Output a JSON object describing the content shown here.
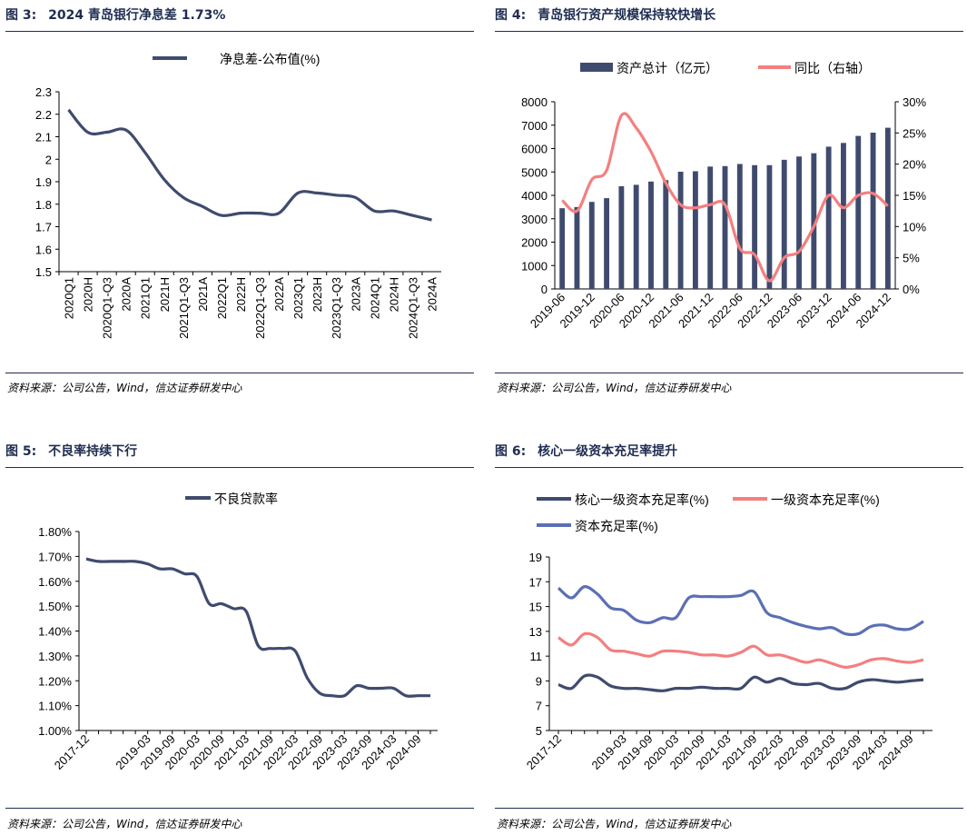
{
  "panels": [
    {
      "fig_label": "图 3:",
      "fig_title": "2024 青岛银行净息差 1.73%",
      "source": "资料来源：公司公告，Wind，信达证券研发中心"
    },
    {
      "fig_label": "图 4:",
      "fig_title": "青岛银行资产规模保持较快增长",
      "source": "资料来源：公司公告，Wind，信达证券研发中心"
    },
    {
      "fig_label": "图 5:",
      "fig_title": "不良率持续下行",
      "source": "资料来源：公司公告，Wind，信达证券研发中心"
    },
    {
      "fig_label": "图 6:",
      "fig_title": "核心一级资本充足率提升",
      "source": "资料来源：公司公告，Wind，信达证券研发中心"
    }
  ],
  "colors": {
    "navy": "#3f4b6e",
    "salmon": "#f47f7f",
    "blue": "#5b6fb4",
    "title": "#1f2d52"
  },
  "chart_data": [
    {
      "type": "line",
      "title": "2024 青岛银行净息差 1.73%",
      "categories": [
        "2020Q1",
        "2020H",
        "2020Q1-Q3",
        "2020A",
        "2021Q1",
        "2021H",
        "2021Q1-Q3",
        "2021A",
        "2022Q1",
        "2022H",
        "2022Q1-Q3",
        "2022A",
        "2023Q1",
        "2023H",
        "2023Q1-Q3",
        "2023A",
        "2024Q1",
        "2024H",
        "2024Q1-Q3",
        "2024A"
      ],
      "series": [
        {
          "name": "净息差-公布值(%)",
          "values": [
            2.22,
            2.12,
            2.12,
            2.13,
            2.03,
            1.91,
            1.83,
            1.79,
            1.75,
            1.76,
            1.76,
            1.76,
            1.85,
            1.85,
            1.84,
            1.83,
            1.77,
            1.77,
            1.75,
            1.73
          ]
        }
      ],
      "ylim": [
        1.5,
        2.3
      ],
      "yticks": [
        "2.3",
        "2.2",
        "2.1",
        "2",
        "1.9",
        "1.8",
        "1.7",
        "1.6",
        "1.5"
      ],
      "legend": "top-center"
    },
    {
      "type": "bar+line",
      "title": "青岛银行资产规模保持较快增长",
      "categories": [
        "2019-06",
        "2019-09",
        "2019-12",
        "2020-03",
        "2020-06",
        "2020-09",
        "2020-12",
        "2021-03",
        "2021-06",
        "2021-09",
        "2021-12",
        "2022-03",
        "2022-06",
        "2022-09",
        "2022-12",
        "2023-03",
        "2023-06",
        "2023-09",
        "2023-12",
        "2024-03",
        "2024-06",
        "2024-09",
        "2024-12"
      ],
      "xticks": [
        "2019-06",
        "2019-12",
        "2020-06",
        "2020-12",
        "2021-06",
        "2021-12",
        "2022-06",
        "2022-12",
        "2023-06",
        "2023-12",
        "2024-06",
        "2024-12"
      ],
      "series": [
        {
          "name": "资产总计（亿元）",
          "axis": "left",
          "values": [
            3450,
            3500,
            3720,
            3880,
            4390,
            4450,
            4590,
            4650,
            5010,
            5030,
            5230,
            5250,
            5340,
            5290,
            5290,
            5520,
            5660,
            5800,
            6080,
            6240,
            6540,
            6680,
            6890
          ]
        },
        {
          "name": "同比（右轴）",
          "axis": "right",
          "values": [
            14.2,
            12.5,
            17.5,
            19,
            27.8,
            25.8,
            22,
            17,
            13.5,
            13,
            13.5,
            13.5,
            6.5,
            5.5,
            1.3,
            5,
            6,
            10,
            15,
            13,
            15,
            15.3,
            13.3
          ]
        }
      ],
      "ylim_left": [
        0,
        8000
      ],
      "yticks_left": [
        "8000",
        "7000",
        "6000",
        "5000",
        "4000",
        "3000",
        "2000",
        "1000",
        "0"
      ],
      "ylim_right": [
        0,
        30
      ],
      "yticks_right": [
        "30%",
        "25%",
        "20%",
        "15%",
        "10%",
        "5%",
        "0%"
      ],
      "legend": "top"
    },
    {
      "type": "line",
      "title": "不良率持续下行",
      "categories": [
        "2017-12",
        "2018-03",
        "2018-06",
        "2018-09",
        "2018-12",
        "2019-03",
        "2019-06",
        "2019-09",
        "2019-12",
        "2020-03",
        "2020-06",
        "2020-09",
        "2020-12",
        "2021-03",
        "2021-06",
        "2021-09",
        "2021-12",
        "2022-03",
        "2022-06",
        "2022-09",
        "2022-12",
        "2023-03",
        "2023-06",
        "2023-09",
        "2023-12",
        "2024-03",
        "2024-06",
        "2024-09",
        "2024-12"
      ],
      "xticks": [
        "2017-12",
        "2019-03",
        "2019-09",
        "2020-03",
        "2020-09",
        "2021-03",
        "2021-09",
        "2022-03",
        "2022-09",
        "2023-03",
        "2023-09",
        "2024-03",
        "2024-09"
      ],
      "series": [
        {
          "name": "不良贷款率",
          "values": [
            1.69,
            1.68,
            1.68,
            1.68,
            1.68,
            1.67,
            1.65,
            1.65,
            1.63,
            1.62,
            1.51,
            1.51,
            1.49,
            1.48,
            1.34,
            1.33,
            1.33,
            1.32,
            1.21,
            1.15,
            1.14,
            1.14,
            1.18,
            1.17,
            1.17,
            1.17,
            1.14,
            1.14,
            1.14
          ]
        }
      ],
      "ylim": [
        1.0,
        1.8
      ],
      "yticks": [
        "1.80%",
        "1.70%",
        "1.60%",
        "1.50%",
        "1.40%",
        "1.30%",
        "1.20%",
        "1.10%",
        "1.00%"
      ],
      "legend": "top-center"
    },
    {
      "type": "line",
      "title": "核心一级资本充足率提升",
      "categories": [
        "2017-12",
        "2018-03",
        "2018-06",
        "2018-09",
        "2018-12",
        "2019-03",
        "2019-06",
        "2019-09",
        "2019-12",
        "2020-03",
        "2020-06",
        "2020-09",
        "2020-12",
        "2021-03",
        "2021-06",
        "2021-09",
        "2021-12",
        "2022-03",
        "2022-06",
        "2022-09",
        "2022-12",
        "2023-03",
        "2023-06",
        "2023-09",
        "2023-12",
        "2024-03",
        "2024-06",
        "2024-09",
        "2024-12"
      ],
      "xticks": [
        "2017-12",
        "2019-03",
        "2019-09",
        "2020-03",
        "2020-09",
        "2021-03",
        "2021-09",
        "2022-03",
        "2022-09",
        "2023-03",
        "2023-09",
        "2024-03",
        "2024-09"
      ],
      "series": [
        {
          "name": "核心一级资本充足率(%)",
          "values": [
            8.7,
            8.4,
            9.4,
            9.3,
            8.6,
            8.4,
            8.4,
            8.3,
            8.2,
            8.4,
            8.4,
            8.5,
            8.4,
            8.4,
            8.4,
            9.3,
            8.9,
            9.2,
            8.8,
            8.7,
            8.8,
            8.4,
            8.4,
            8.9,
            9.1,
            9.0,
            8.9,
            9.0,
            9.1
          ]
        },
        {
          "name": "一级资本充足率(%)",
          "values": [
            12.5,
            11.9,
            12.8,
            12.5,
            11.5,
            11.4,
            11.2,
            11.0,
            11.4,
            11.4,
            11.3,
            11.1,
            11.1,
            11.0,
            11.3,
            11.8,
            11.1,
            11.1,
            10.8,
            10.5,
            10.7,
            10.4,
            10.1,
            10.3,
            10.7,
            10.8,
            10.6,
            10.5,
            10.7
          ]
        },
        {
          "name": "资本充足率(%)",
          "values": [
            16.5,
            15.7,
            16.6,
            16.0,
            14.9,
            14.7,
            13.9,
            13.7,
            14.1,
            14.1,
            15.7,
            15.8,
            15.8,
            15.8,
            15.9,
            16.2,
            14.5,
            14.1,
            13.7,
            13.4,
            13.2,
            13.3,
            12.8,
            12.8,
            13.4,
            13.5,
            13.2,
            13.2,
            13.8
          ]
        }
      ],
      "ylim": [
        5,
        19
      ],
      "yticks": [
        "19",
        "17",
        "15",
        "13",
        "11",
        "9",
        "7",
        "5"
      ],
      "legend": "top"
    }
  ]
}
